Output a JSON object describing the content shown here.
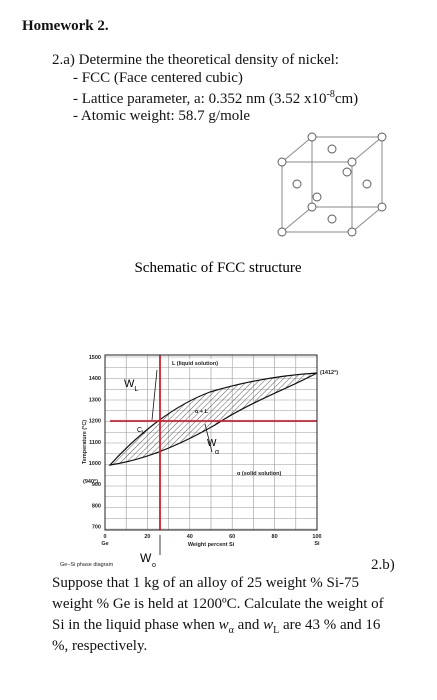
{
  "header": {
    "title": "Homework 2."
  },
  "problem_a": {
    "lead": "2.a) Determine the theoretical density of nickel:",
    "bullets": [
      [
        "- FCC (Face centered cubic)"
      ],
      [
        "- Lattice parameter, a: 0.352 nm (3.52 x10",
        "-8",
        "cm)"
      ],
      [
        "- Atomic weight: 58.7 g/mole"
      ]
    ]
  },
  "fcc_figure": {
    "caption": "Schematic of FCC structure"
  },
  "phase_diagram": {
    "y_axis_label": "Temperature (°C)",
    "y_ticks": [
      "1500",
      "1400",
      "1300",
      "1200",
      "1100",
      "1000",
      "900",
      "800",
      "700"
    ],
    "ge_melt": "(940°)",
    "si_melt": "(1412°)",
    "x_ticks": [
      "0",
      "20",
      "40",
      "60",
      "80",
      "100"
    ],
    "x_end_left": "Ge",
    "x_end_right": "Si",
    "x_axis_label": "Weight percent Si",
    "liquid_label": "L (liquid solution)",
    "two_phase_label": "α + L",
    "solid_label": "α (solid solution)",
    "wl": [
      "W",
      "L"
    ],
    "cl": [
      "C",
      "L"
    ],
    "wa": [
      "W",
      "α"
    ],
    "w0": [
      "W",
      "o"
    ],
    "caption": "Ge–Si phase diagram"
  },
  "problem_b": {
    "label": "2.b)",
    "lines": [
      [
        "Suppose that 1 kg of an alloy of 25 weight % Si-75"
      ],
      [
        "weight % Ge is held at 1200ºC. Calculate the weight of"
      ],
      [
        "Si in the liquid phase when ",
        "w",
        "α",
        " and ",
        "w",
        "L",
        " are 43 % and 16"
      ],
      [
        "%, respectively."
      ]
    ]
  }
}
